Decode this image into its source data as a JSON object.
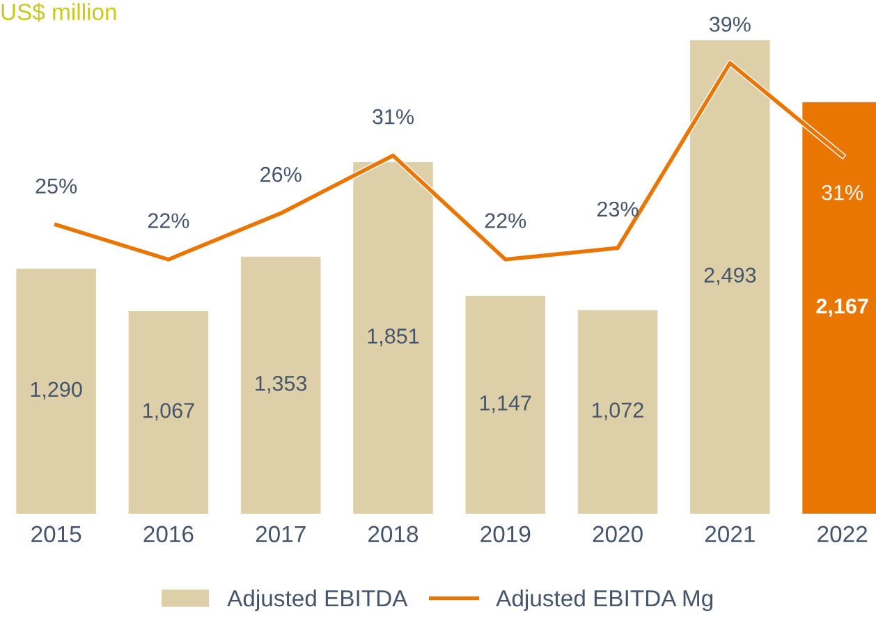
{
  "chart_data": {
    "type": "bar",
    "title": "US$ million",
    "categories": [
      "2015",
      "2016",
      "2017",
      "2018",
      "2019",
      "2020",
      "2021",
      "2022"
    ],
    "legend": "bottom",
    "grid": false,
    "tick_labels": "x",
    "series": [
      {
        "name": "Adjusted EBITDA",
        "color": "#ddd0a8",
        "colors": [
          "#ddd0a8",
          "#ddd0a8",
          "#ddd0a8",
          "#ddd0a8",
          "#ddd0a8",
          "#ddd0a8",
          "#ddd0a8",
          "#e87600"
        ],
        "values": [
          1290,
          1067,
          1353,
          1851,
          1147,
          1072,
          2493,
          2167
        ],
        "value_labels": [
          "1,290",
          "1,067",
          "1,353",
          "1,851",
          "1,147",
          "1,072",
          "2,493",
          "2,167"
        ]
      },
      {
        "name": "Adjusted EBITDA Mg",
        "type": "line",
        "axis": "y2",
        "color": "#e87600",
        "marker": "none",
        "line_style": "solid",
        "values": [
          25,
          22,
          26,
          31,
          22,
          23,
          39,
          31
        ],
        "value_labels": [
          "25%",
          "22%",
          "26%",
          "31%",
          "22%",
          "23%",
          "39%",
          "31%"
        ]
      }
    ]
  }
}
